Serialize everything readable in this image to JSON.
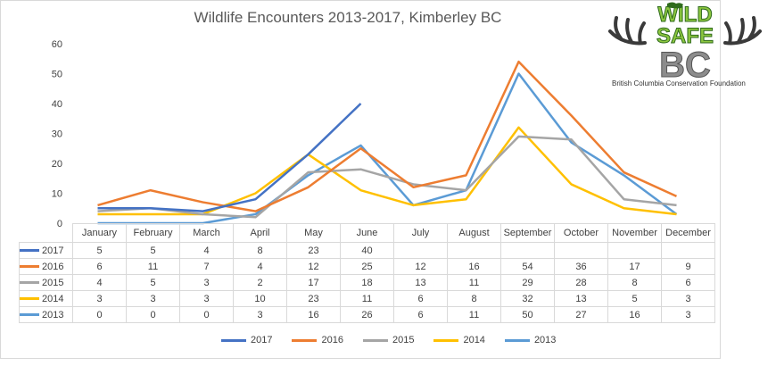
{
  "chart_data": {
    "type": "line",
    "title": "Wildlife Encounters 2013-2017, Kimberley BC",
    "categories": [
      "January",
      "February",
      "March",
      "April",
      "May",
      "June",
      "July",
      "August",
      "September",
      "October",
      "November",
      "December"
    ],
    "ylim": [
      0,
      60
    ],
    "yticks": [
      "0",
      "10",
      "20",
      "30",
      "40",
      "50",
      "60"
    ],
    "grid": false,
    "legend_position": "bottom",
    "series": [
      {
        "name": "2017",
        "color": "#4472c4",
        "values": [
          5,
          5,
          4,
          8,
          23,
          40,
          null,
          null,
          null,
          null,
          null,
          null
        ]
      },
      {
        "name": "2016",
        "color": "#ed7d31",
        "values": [
          6,
          11,
          7,
          4,
          12,
          25,
          12,
          16,
          54,
          36,
          17,
          9
        ]
      },
      {
        "name": "2015",
        "color": "#a5a5a5",
        "values": [
          4,
          5,
          3,
          2,
          17,
          18,
          13,
          11,
          29,
          28,
          8,
          6
        ]
      },
      {
        "name": "2014",
        "color": "#ffc000",
        "values": [
          3,
          3,
          3,
          10,
          23,
          11,
          6,
          8,
          32,
          13,
          5,
          3
        ]
      },
      {
        "name": "2013",
        "color": "#5b9bd5",
        "values": [
          0,
          0,
          0,
          3,
          16,
          26,
          6,
          11,
          50,
          27,
          16,
          3
        ]
      }
    ]
  },
  "logo": {
    "line1": "WILD",
    "line2": "SAFE",
    "line3": "BC",
    "caption": "British Columbia Conservation Foundation"
  }
}
